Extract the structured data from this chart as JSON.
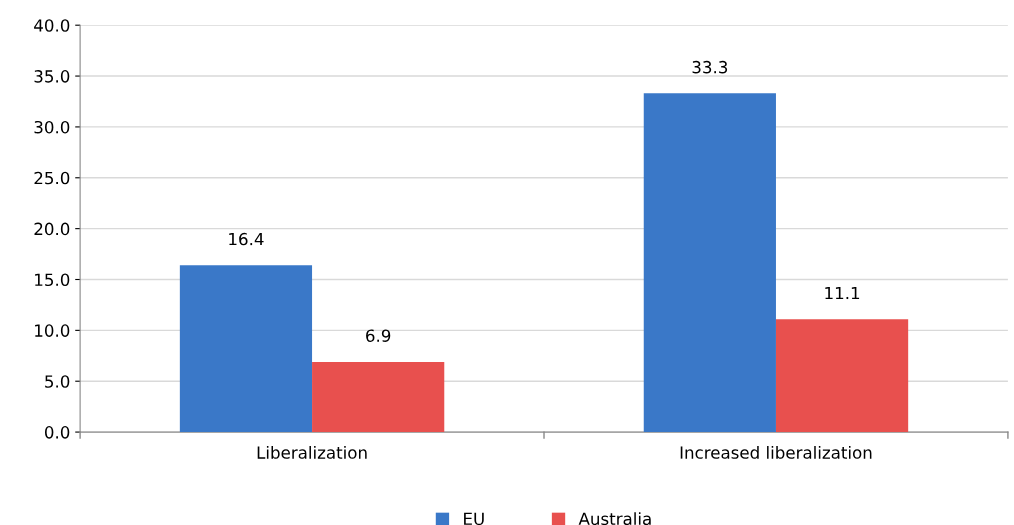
{
  "chart_data": {
    "type": "bar",
    "categories": [
      "Liberalization",
      "Increased liberalization"
    ],
    "series": [
      {
        "name": "EU",
        "color": "#3a78c8",
        "values": [
          16.4,
          33.3
        ]
      },
      {
        "name": "Australia",
        "color": "#e8504e",
        "values": [
          6.9,
          11.1
        ]
      }
    ],
    "ylim": [
      0,
      40
    ],
    "yticks": [
      {
        "value": 0,
        "label": "0.0"
      },
      {
        "value": 5,
        "label": "5.0"
      },
      {
        "value": 10,
        "label": "10.0"
      },
      {
        "value": 15,
        "label": "15.0"
      },
      {
        "value": 20,
        "label": "20.0"
      },
      {
        "value": 25,
        "label": "25.0"
      },
      {
        "value": 30,
        "label": "30.0"
      },
      {
        "value": 35,
        "label": "35.0"
      },
      {
        "value": 40,
        "label": "40.0"
      }
    ],
    "grid": "y",
    "legend": "bottom",
    "data_labels": true
  }
}
